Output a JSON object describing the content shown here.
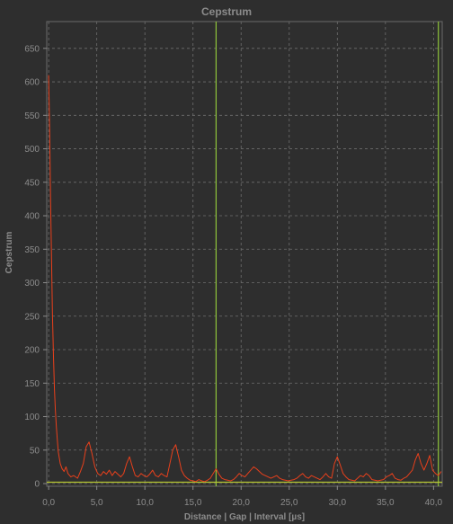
{
  "chart_data": {
    "type": "line",
    "title": "Cepstrum",
    "xlabel": "Distance | Gap | Interval [µs]",
    "ylabel": "Cepstrum",
    "xlim": [
      -0.2,
      40.9
    ],
    "ylim": [
      -4,
      690
    ],
    "x_ticks": [
      "0,0",
      "5,0",
      "10,0",
      "15,0",
      "20,0",
      "25,0",
      "30,0",
      "35,0",
      "40,0"
    ],
    "x_tick_values": [
      0,
      5,
      10,
      15,
      20,
      25,
      30,
      35,
      40
    ],
    "y_ticks": [
      "0",
      "50",
      "100",
      "150",
      "200",
      "250",
      "300",
      "350",
      "400",
      "450",
      "500",
      "550",
      "600",
      "650"
    ],
    "y_tick_values": [
      0,
      50,
      100,
      150,
      200,
      250,
      300,
      350,
      400,
      450,
      500,
      550,
      600,
      650
    ],
    "grid": true,
    "series": [
      {
        "color": "#e8401c",
        "x": [
          0.0,
          0.1,
          0.2,
          0.3,
          0.4,
          0.5,
          0.6,
          0.7,
          0.8,
          0.9,
          1.0,
          1.2,
          1.4,
          1.6,
          1.8,
          2.0,
          2.3,
          2.6,
          3.0,
          3.3,
          3.6,
          3.9,
          4.2,
          4.5,
          4.8,
          5.1,
          5.4,
          5.7,
          6.0,
          6.3,
          6.6,
          6.9,
          7.2,
          7.5,
          7.8,
          8.1,
          8.4,
          8.7,
          9.0,
          9.3,
          9.6,
          9.9,
          10.2,
          10.5,
          10.8,
          11.1,
          11.4,
          11.7,
          12.0,
          12.3,
          12.6,
          12.9,
          13.2,
          13.5,
          13.8,
          14.1,
          14.4,
          14.7,
          15.0,
          15.3,
          15.6,
          15.9,
          16.2,
          16.5,
          16.8,
          17.1,
          17.4,
          17.7,
          18.0,
          18.3,
          18.6,
          18.9,
          19.2,
          19.5,
          19.8,
          20.1,
          20.4,
          20.7,
          21.0,
          21.3,
          21.6,
          21.9,
          22.2,
          22.5,
          22.8,
          23.1,
          23.4,
          23.7,
          24.0,
          24.3,
          24.6,
          24.9,
          25.2,
          25.5,
          25.8,
          26.1,
          26.4,
          26.7,
          27.0,
          27.3,
          27.6,
          27.9,
          28.2,
          28.5,
          28.8,
          29.1,
          29.4,
          29.7,
          30.0,
          30.3,
          30.6,
          30.9,
          31.2,
          31.5,
          31.8,
          32.1,
          32.4,
          32.7,
          33.0,
          33.3,
          33.6,
          33.9,
          34.2,
          34.5,
          34.8,
          35.1,
          35.4,
          35.7,
          36.0,
          36.3,
          36.6,
          36.9,
          37.2,
          37.5,
          37.8,
          38.1,
          38.4,
          38.7,
          39.0,
          39.3,
          39.6,
          39.9,
          40.2,
          40.5,
          40.8
        ],
        "y": [
          610,
          530,
          420,
          330,
          250,
          190,
          140,
          110,
          85,
          65,
          48,
          30,
          22,
          18,
          25,
          15,
          10,
          12,
          8,
          18,
          30,
          55,
          62,
          45,
          25,
          15,
          12,
          18,
          14,
          20,
          12,
          18,
          14,
          10,
          15,
          30,
          40,
          25,
          12,
          10,
          15,
          12,
          10,
          14,
          20,
          12,
          10,
          15,
          12,
          10,
          30,
          50,
          58,
          40,
          20,
          12,
          8,
          5,
          4,
          3,
          6,
          4,
          3,
          5,
          8,
          15,
          22,
          14,
          8,
          6,
          5,
          4,
          6,
          10,
          15,
          12,
          10,
          15,
          20,
          25,
          22,
          18,
          14,
          12,
          10,
          8,
          10,
          12,
          8,
          6,
          5,
          4,
          5,
          6,
          8,
          12,
          15,
          10,
          8,
          12,
          10,
          8,
          6,
          10,
          15,
          10,
          8,
          30,
          40,
          28,
          15,
          10,
          6,
          5,
          4,
          8,
          12,
          10,
          15,
          12,
          6,
          5,
          4,
          5,
          6,
          10,
          12,
          15,
          8,
          6,
          5,
          8,
          10,
          15,
          20,
          35,
          45,
          30,
          20,
          30,
          42,
          20,
          15,
          12,
          18
        ]
      }
    ],
    "markers": [
      {
        "type": "vline",
        "x": 17.4,
        "color": "#8fc53a"
      },
      {
        "type": "vline",
        "x": 40.5,
        "color": "#8fc53a"
      },
      {
        "type": "hline",
        "y": 2,
        "color": "#b8c832"
      }
    ]
  }
}
